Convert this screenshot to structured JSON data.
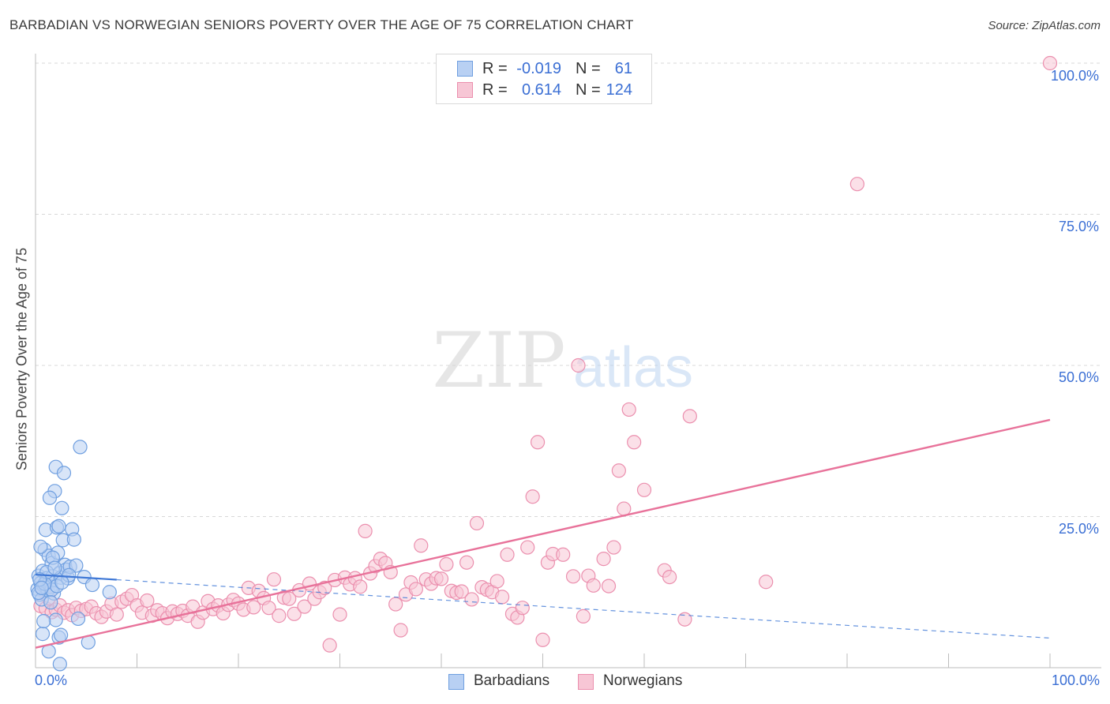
{
  "title": "BARBADIAN VS NORWEGIAN SENIORS POVERTY OVER THE AGE OF 75 CORRELATION CHART",
  "source": "Source: ZipAtlas.com",
  "watermark": {
    "zip": "ZIP",
    "atlas": "atlas"
  },
  "legend": {
    "r_label": "R =",
    "n_label": "N =",
    "rows": [
      {
        "r": "-0.019",
        "n": "61"
      },
      {
        "r": "0.614",
        "n": "124"
      }
    ]
  },
  "colors": {
    "blue_fill": "#b8d0f3",
    "blue_stroke": "#6f9fe0",
    "blue_line": "#3f78d6",
    "pink_fill": "#f7c6d5",
    "pink_stroke": "#eb8fae",
    "pink_line": "#e8729a",
    "tick_text": "#3b6fd4",
    "grid": "#d8d8d8"
  },
  "chart_data": {
    "type": "scatter",
    "title": "BARBADIAN VS NORWEGIAN SENIORS POVERTY OVER THE AGE OF 75 CORRELATION CHART",
    "xlabel": "",
    "ylabel": "Seniors Poverty Over the Age of 75",
    "xlim": [
      0,
      100
    ],
    "ylim": [
      0,
      100
    ],
    "x_tick_labels": [
      "0.0%",
      "100.0%"
    ],
    "y_tick_labels": [
      {
        "value": 100,
        "label": "100.0%"
      },
      {
        "value": 75,
        "label": "75.0%"
      },
      {
        "value": 50,
        "label": "50.0%"
      },
      {
        "value": 25,
        "label": "25.0%"
      }
    ],
    "grid": true,
    "series": [
      {
        "name": "Barbadians",
        "r": -0.019,
        "n": 61,
        "trend": {
          "x0": 0,
          "y0": 15.4,
          "x1": 100,
          "y1": 4.9,
          "solid_until_x": 8
        },
        "points": [
          [
            0.2,
            13.0
          ],
          [
            0.3,
            15.2
          ],
          [
            0.4,
            12.1
          ],
          [
            0.5,
            14.0
          ],
          [
            0.6,
            11.3
          ],
          [
            0.7,
            16.0
          ],
          [
            0.8,
            13.6
          ],
          [
            0.9,
            19.5
          ],
          [
            1.0,
            22.8
          ],
          [
            1.1,
            14.8
          ],
          [
            1.2,
            12.8
          ],
          [
            1.3,
            18.5
          ],
          [
            1.4,
            14.2
          ],
          [
            1.5,
            13.4
          ],
          [
            1.6,
            17.3
          ],
          [
            1.7,
            15.1
          ],
          [
            1.8,
            12.3
          ],
          [
            1.9,
            29.2
          ],
          [
            2.0,
            33.2
          ],
          [
            2.1,
            23.2
          ],
          [
            2.2,
            19.0
          ],
          [
            2.3,
            23.4
          ],
          [
            2.4,
            15.7
          ],
          [
            2.5,
            14.9
          ],
          [
            2.6,
            26.4
          ],
          [
            2.7,
            21.1
          ],
          [
            2.8,
            32.2
          ],
          [
            2.9,
            17.0
          ],
          [
            3.0,
            16.2
          ],
          [
            3.2,
            14.8
          ],
          [
            3.4,
            16.7
          ],
          [
            3.6,
            22.9
          ],
          [
            3.8,
            21.2
          ],
          [
            4.0,
            16.9
          ],
          [
            4.2,
            8.1
          ],
          [
            4.4,
            36.5
          ],
          [
            4.8,
            15.0
          ],
          [
            5.2,
            4.2
          ],
          [
            5.6,
            13.7
          ],
          [
            1.3,
            2.7
          ],
          [
            0.7,
            5.6
          ],
          [
            2.0,
            7.9
          ],
          [
            2.3,
            5.0
          ],
          [
            2.5,
            5.4
          ],
          [
            0.8,
            7.7
          ],
          [
            1.4,
            28.1
          ],
          [
            0.5,
            20.0
          ],
          [
            1.6,
            12.9
          ],
          [
            2.1,
            13.5
          ],
          [
            3.3,
            15.3
          ],
          [
            0.3,
            12.4
          ],
          [
            0.9,
            13.9
          ],
          [
            1.1,
            15.8
          ],
          [
            2.4,
            0.6
          ],
          [
            7.3,
            12.5
          ],
          [
            1.5,
            10.8
          ],
          [
            0.4,
            14.6
          ],
          [
            1.7,
            18.2
          ],
          [
            2.6,
            14.1
          ],
          [
            0.6,
            13.2
          ],
          [
            1.9,
            16.5
          ]
        ]
      },
      {
        "name": "Norwegians",
        "r": 0.614,
        "n": 124,
        "trend": {
          "x0": 0,
          "y0": 3.3,
          "x1": 100,
          "y1": 41.0
        },
        "points": [
          [
            0.5,
            10.2
          ],
          [
            0.8,
            12.6
          ],
          [
            1.0,
            9.8
          ],
          [
            1.3,
            11.5
          ],
          [
            1.6,
            9.2
          ],
          [
            2.0,
            9.6
          ],
          [
            2.4,
            10.3
          ],
          [
            2.8,
            9.1
          ],
          [
            3.2,
            9.5
          ],
          [
            3.6,
            8.7
          ],
          [
            4.0,
            9.9
          ],
          [
            4.5,
            9.4
          ],
          [
            5.0,
            9.7
          ],
          [
            5.5,
            10.1
          ],
          [
            6.0,
            9.0
          ],
          [
            6.5,
            8.4
          ],
          [
            7.0,
            9.3
          ],
          [
            7.5,
            10.6
          ],
          [
            8.0,
            8.8
          ],
          [
            8.5,
            10.9
          ],
          [
            9.0,
            11.4
          ],
          [
            9.5,
            12.0
          ],
          [
            10.0,
            10.3
          ],
          [
            10.5,
            9.1
          ],
          [
            11.0,
            11.1
          ],
          [
            11.5,
            8.6
          ],
          [
            12.0,
            9.5
          ],
          [
            12.5,
            9.0
          ],
          [
            13.0,
            8.2
          ],
          [
            13.5,
            9.3
          ],
          [
            14.0,
            8.9
          ],
          [
            14.5,
            9.4
          ],
          [
            15.0,
            8.6
          ],
          [
            15.5,
            10.1
          ],
          [
            16.0,
            7.6
          ],
          [
            16.5,
            9.1
          ],
          [
            17.0,
            11.0
          ],
          [
            17.5,
            9.7
          ],
          [
            18.0,
            10.3
          ],
          [
            18.5,
            9.0
          ],
          [
            19.0,
            10.4
          ],
          [
            19.5,
            11.2
          ],
          [
            20.0,
            10.6
          ],
          [
            20.5,
            9.6
          ],
          [
            21.0,
            13.2
          ],
          [
            21.5,
            10.0
          ],
          [
            22.0,
            12.7
          ],
          [
            22.5,
            11.5
          ],
          [
            23.0,
            9.9
          ],
          [
            23.5,
            14.6
          ],
          [
            24.0,
            8.6
          ],
          [
            24.5,
            11.6
          ],
          [
            25.0,
            11.4
          ],
          [
            25.5,
            8.9
          ],
          [
            26.0,
            12.8
          ],
          [
            26.5,
            10.1
          ],
          [
            27.0,
            13.9
          ],
          [
            27.5,
            11.4
          ],
          [
            28.0,
            12.5
          ],
          [
            28.5,
            13.2
          ],
          [
            29.0,
            3.7
          ],
          [
            29.5,
            14.5
          ],
          [
            30.0,
            8.8
          ],
          [
            30.5,
            14.9
          ],
          [
            31.0,
            13.8
          ],
          [
            31.5,
            14.8
          ],
          [
            32.0,
            13.4
          ],
          [
            32.5,
            22.6
          ],
          [
            33.0,
            15.6
          ],
          [
            33.5,
            16.8
          ],
          [
            34.0,
            18.0
          ],
          [
            34.5,
            17.3
          ],
          [
            35.0,
            15.8
          ],
          [
            35.5,
            10.5
          ],
          [
            36.0,
            6.2
          ],
          [
            36.5,
            12.1
          ],
          [
            37.0,
            14.1
          ],
          [
            37.5,
            13.0
          ],
          [
            38.0,
            20.2
          ],
          [
            38.5,
            14.6
          ],
          [
            39.0,
            13.9
          ],
          [
            39.5,
            14.8
          ],
          [
            40.0,
            14.7
          ],
          [
            40.5,
            17.1
          ],
          [
            41.0,
            12.7
          ],
          [
            41.5,
            12.4
          ],
          [
            42.0,
            12.6
          ],
          [
            42.5,
            17.4
          ],
          [
            43.0,
            11.3
          ],
          [
            43.5,
            23.9
          ],
          [
            44.0,
            13.3
          ],
          [
            44.5,
            12.9
          ],
          [
            45.0,
            12.5
          ],
          [
            45.5,
            14.3
          ],
          [
            46.0,
            11.7
          ],
          [
            46.5,
            18.7
          ],
          [
            47.0,
            8.9
          ],
          [
            47.5,
            8.3
          ],
          [
            48.0,
            9.9
          ],
          [
            48.5,
            19.9
          ],
          [
            49.0,
            28.3
          ],
          [
            49.5,
            37.3
          ],
          [
            50.0,
            4.6
          ],
          [
            50.5,
            17.4
          ],
          [
            51.0,
            18.8
          ],
          [
            52.0,
            18.7
          ],
          [
            53.0,
            15.1
          ],
          [
            53.5,
            50.0
          ],
          [
            54.0,
            8.5
          ],
          [
            54.5,
            15.2
          ],
          [
            55.0,
            13.6
          ],
          [
            56.0,
            18.0
          ],
          [
            57.0,
            19.9
          ],
          [
            57.5,
            32.6
          ],
          [
            58.0,
            26.3
          ],
          [
            58.5,
            42.7
          ],
          [
            59.0,
            37.3
          ],
          [
            60.0,
            29.4
          ],
          [
            62.0,
            16.1
          ],
          [
            62.5,
            15.0
          ],
          [
            64.5,
            41.6
          ],
          [
            64.0,
            8.0
          ],
          [
            56.5,
            13.5
          ],
          [
            72.0,
            14.2
          ],
          [
            81.0,
            80.0
          ],
          [
            100.0,
            100.0
          ]
        ]
      }
    ]
  },
  "bottom_legend": [
    "Barbadians",
    "Norwegians"
  ]
}
